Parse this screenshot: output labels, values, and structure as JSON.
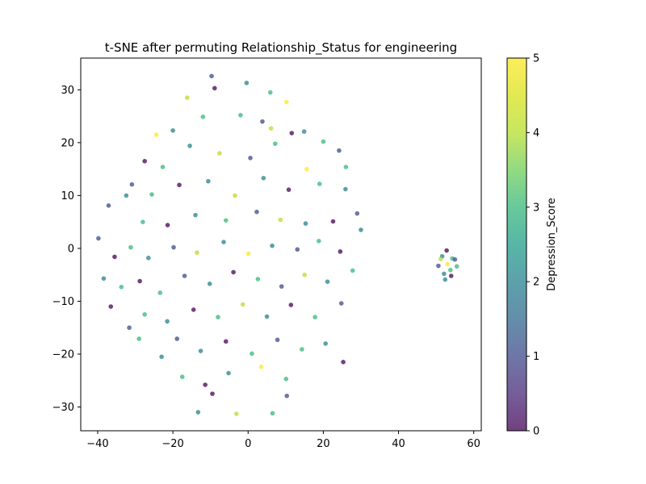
{
  "chart_data": {
    "type": "scatter",
    "title": "t-SNE after permuting Relationship_Status for engineering",
    "xlabel": "",
    "ylabel": "",
    "xlim": [
      -44.5,
      62
    ],
    "ylim": [
      -34.5,
      36
    ],
    "xticks": [
      -40,
      -20,
      0,
      20,
      40,
      60
    ],
    "yticks": [
      -30,
      -20,
      -10,
      0,
      10,
      20,
      30
    ],
    "xtick_labels": [
      "−40",
      "−20",
      "0",
      "20",
      "40",
      "60"
    ],
    "ytick_labels": [
      "−30",
      "−20",
      "−10",
      "0",
      "10",
      "20",
      "30"
    ],
    "grid": false,
    "colorbar": {
      "label": "Depression_Score",
      "colormap": "viridis",
      "range": [
        0,
        5
      ],
      "ticks": [
        0,
        1,
        2,
        3,
        4,
        5
      ],
      "tick_labels": [
        "0",
        "1",
        "2",
        "3",
        "4",
        "5"
      ]
    },
    "point_alpha": 0.75,
    "cluster_note": "main cloud roughly x in [-40,30], y in [-31,33]; small cluster centered near (53,-3)",
    "points": [
      [
        -9.7,
        32.6,
        1
      ],
      [
        -0.4,
        31.3,
        2
      ],
      [
        5.9,
        29.5,
        3
      ],
      [
        10.2,
        27.7,
        5
      ],
      [
        -8.9,
        30.3,
        0
      ],
      [
        -16.2,
        28.5,
        4
      ],
      [
        -2.0,
        25.2,
        3
      ],
      [
        3.8,
        24.0,
        1
      ],
      [
        11.6,
        21.8,
        0
      ],
      [
        -24.4,
        21.5,
        5
      ],
      [
        -20.0,
        22.3,
        2
      ],
      [
        -12.0,
        24.9,
        3
      ],
      [
        6.1,
        22.7,
        4
      ],
      [
        14.9,
        22.1,
        2
      ],
      [
        20.0,
        20.2,
        3
      ],
      [
        24.2,
        18.5,
        1
      ],
      [
        -27.5,
        16.5,
        0
      ],
      [
        -22.7,
        15.4,
        3
      ],
      [
        -15.5,
        19.4,
        2
      ],
      [
        -7.6,
        18.0,
        4
      ],
      [
        0.6,
        17.1,
        1
      ],
      [
        7.2,
        19.8,
        3
      ],
      [
        15.6,
        15.0,
        5
      ],
      [
        26.0,
        15.4,
        3
      ],
      [
        -30.9,
        12.1,
        1
      ],
      [
        -25.6,
        10.2,
        3
      ],
      [
        -18.3,
        12.0,
        0
      ],
      [
        -10.6,
        12.7,
        2
      ],
      [
        -3.5,
        10.0,
        4
      ],
      [
        4.1,
        13.3,
        2
      ],
      [
        10.8,
        11.1,
        0
      ],
      [
        19.0,
        12.2,
        3
      ],
      [
        25.9,
        11.2,
        2
      ],
      [
        -37.1,
        8.1,
        1
      ],
      [
        -32.4,
        10.0,
        2
      ],
      [
        -28.0,
        5.0,
        3
      ],
      [
        -21.4,
        4.4,
        0
      ],
      [
        -14.0,
        6.3,
        2
      ],
      [
        -5.9,
        5.3,
        3
      ],
      [
        2.3,
        6.9,
        1
      ],
      [
        8.6,
        5.4,
        4
      ],
      [
        15.3,
        4.7,
        2
      ],
      [
        22.6,
        5.1,
        0
      ],
      [
        29.0,
        6.6,
        1
      ],
      [
        -39.8,
        1.9,
        1
      ],
      [
        -35.5,
        -1.6,
        0
      ],
      [
        -31.2,
        0.2,
        3
      ],
      [
        -26.5,
        -1.8,
        2
      ],
      [
        -19.8,
        0.2,
        1
      ],
      [
        -13.6,
        -0.8,
        4
      ],
      [
        -6.5,
        1.2,
        2
      ],
      [
        0.1,
        -1.0,
        5
      ],
      [
        6.4,
        0.5,
        2
      ],
      [
        13.1,
        -0.2,
        1
      ],
      [
        18.8,
        1.4,
        3
      ],
      [
        24.5,
        -0.6,
        0
      ],
      [
        30.0,
        3.5,
        2
      ],
      [
        -38.4,
        -5.7,
        2
      ],
      [
        -33.7,
        -7.3,
        3
      ],
      [
        -28.8,
        -6.2,
        0
      ],
      [
        -23.4,
        -8.4,
        3
      ],
      [
        -16.9,
        -5.2,
        1
      ],
      [
        -10.2,
        -6.7,
        2
      ],
      [
        -3.9,
        -4.5,
        0
      ],
      [
        2.6,
        -5.8,
        3
      ],
      [
        8.9,
        -7.2,
        1
      ],
      [
        15.0,
        -5.0,
        4
      ],
      [
        21.1,
        -6.3,
        2
      ],
      [
        27.8,
        -4.2,
        3
      ],
      [
        -36.5,
        -11.0,
        0
      ],
      [
        -31.6,
        -15.0,
        1
      ],
      [
        -27.5,
        -12.5,
        3
      ],
      [
        -21.5,
        -13.8,
        2
      ],
      [
        -14.5,
        -11.6,
        0
      ],
      [
        -8.0,
        -13.0,
        3
      ],
      [
        -1.4,
        -10.6,
        4
      ],
      [
        5.0,
        -12.9,
        2
      ],
      [
        11.4,
        -10.7,
        0
      ],
      [
        17.8,
        -13.0,
        3
      ],
      [
        24.8,
        -10.4,
        1
      ],
      [
        -29.0,
        -17.1,
        3
      ],
      [
        -23.0,
        -20.5,
        2
      ],
      [
        -18.9,
        -17.1,
        1
      ],
      [
        -12.6,
        -19.4,
        2
      ],
      [
        -5.9,
        -17.6,
        0
      ],
      [
        1.0,
        -19.9,
        3
      ],
      [
        7.8,
        -17.3,
        1
      ],
      [
        14.3,
        -19.1,
        3
      ],
      [
        20.6,
        -18.0,
        2
      ],
      [
        25.3,
        -21.5,
        0
      ],
      [
        -17.5,
        -24.3,
        3
      ],
      [
        -11.4,
        -25.8,
        0
      ],
      [
        -5.2,
        -23.6,
        2
      ],
      [
        3.5,
        -22.4,
        5
      ],
      [
        10.1,
        -24.7,
        3
      ],
      [
        -13.3,
        -31.0,
        2
      ],
      [
        -3.1,
        -31.3,
        4
      ],
      [
        6.5,
        -31.2,
        3
      ],
      [
        10.3,
        -27.9,
        1
      ],
      [
        -9.5,
        -27.5,
        0
      ],
      [
        51.6,
        -1.5,
        2
      ],
      [
        52.8,
        -0.4,
        0
      ],
      [
        54.3,
        -1.9,
        3
      ],
      [
        50.6,
        -3.3,
        1
      ],
      [
        53.0,
        -3.0,
        5
      ],
      [
        55.5,
        -3.4,
        3
      ],
      [
        52.1,
        -4.8,
        2
      ],
      [
        54.0,
        -5.2,
        0
      ],
      [
        51.2,
        -2.0,
        4
      ],
      [
        53.8,
        -4.1,
        3
      ],
      [
        55.0,
        -2.1,
        1
      ],
      [
        52.4,
        -5.9,
        2
      ]
    ]
  }
}
